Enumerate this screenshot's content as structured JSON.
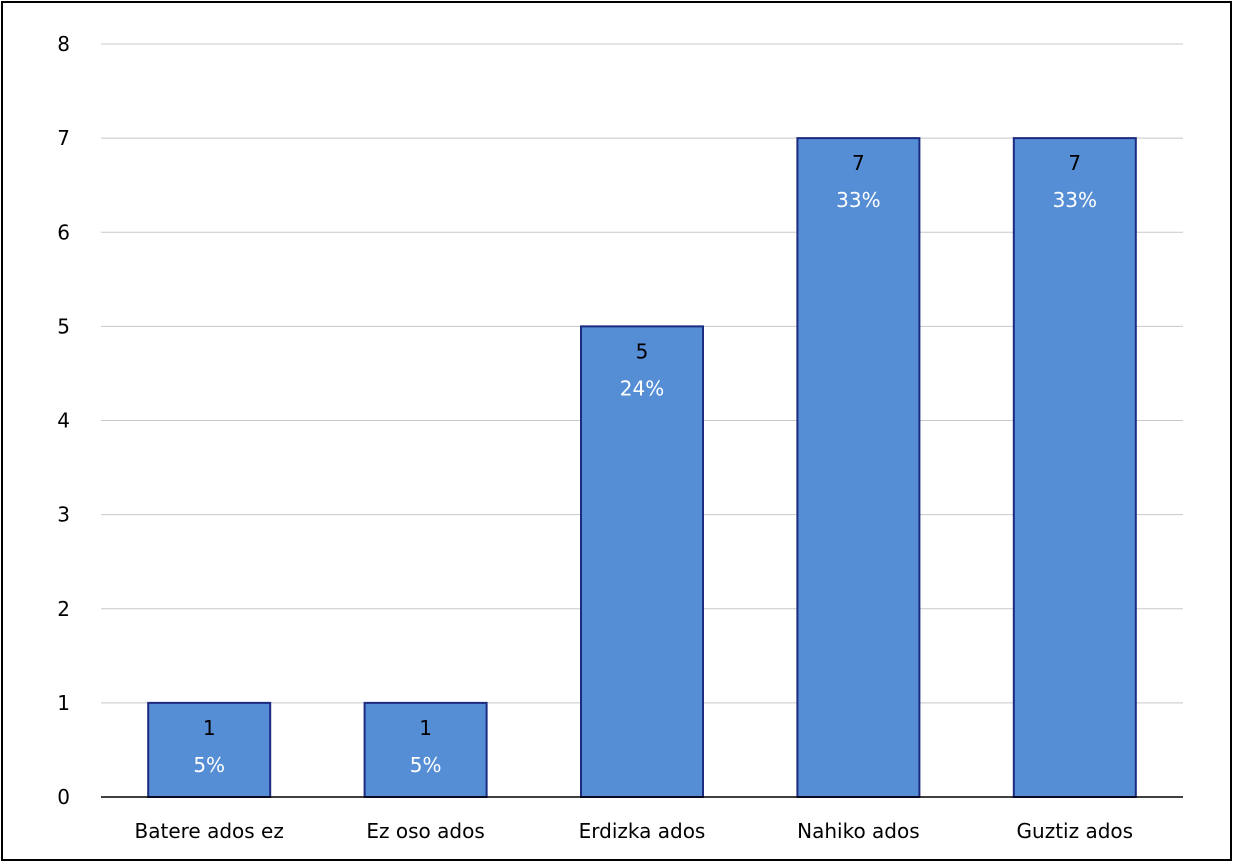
{
  "chart_data": {
    "type": "bar",
    "categories": [
      "Batere ados ez",
      "Ez oso ados",
      "Erdizka ados",
      "Nahiko ados",
      "Guztiz ados"
    ],
    "values": [
      1,
      1,
      5,
      7,
      7
    ],
    "percent_labels": [
      "5%",
      "5%",
      "24%",
      "33%",
      "33%"
    ],
    "count_labels": [
      "1",
      "1",
      "5",
      "7",
      "7"
    ],
    "ylim": [
      0,
      8
    ],
    "yticks": [
      "0",
      "1",
      "2",
      "3",
      "4",
      "5",
      "6",
      "7",
      "8"
    ],
    "grid": true,
    "title": "",
    "xlabel": "",
    "ylabel": "",
    "colors": {
      "bar_fill": "#568ed6",
      "bar_stroke": "#1c2a80",
      "grid": "#c8c8c8",
      "axis": "#000000"
    }
  }
}
